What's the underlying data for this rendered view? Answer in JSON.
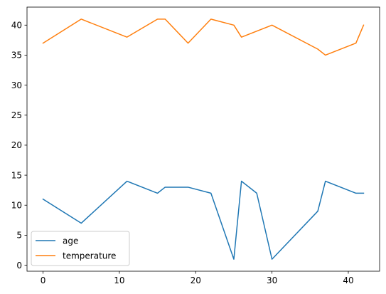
{
  "chart_data": {
    "type": "line",
    "title": "",
    "xlabel": "",
    "ylabel": "",
    "xlim": [
      -2.1,
      44.1
    ],
    "ylim": [
      -1.0,
      43.0
    ],
    "xticks": [
      0,
      10,
      20,
      30,
      40
    ],
    "yticks": [
      0,
      5,
      10,
      15,
      20,
      25,
      30,
      35,
      40
    ],
    "grid": false,
    "legend": {
      "placement": "bottom-left"
    },
    "series": [
      {
        "name": "age",
        "color": "#1f77b4",
        "x": [
          0,
          5,
          11,
          15,
          16,
          19,
          22,
          25,
          26,
          28,
          30,
          36,
          37,
          41,
          42
        ],
        "values": [
          11,
          7,
          14,
          12,
          13,
          13,
          12,
          1,
          14,
          12,
          1,
          9,
          14,
          12,
          12
        ]
      },
      {
        "name": "temperature",
        "color": "#ff7f0e",
        "x": [
          0,
          5,
          11,
          15,
          16,
          19,
          22,
          25,
          26,
          30,
          36,
          37,
          41,
          42
        ],
        "values": [
          37,
          41,
          38,
          41,
          41,
          37,
          41,
          40,
          38,
          40,
          36,
          35,
          37,
          40
        ]
      }
    ]
  }
}
